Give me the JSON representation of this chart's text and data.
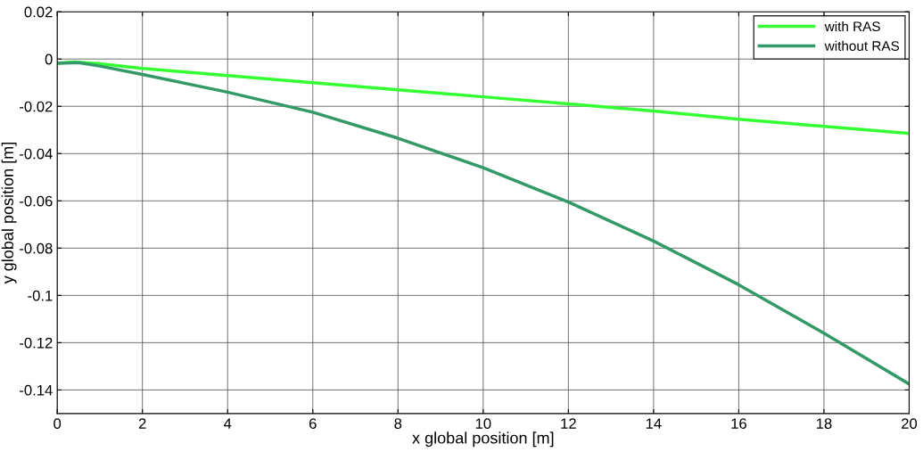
{
  "chart_data": {
    "type": "line",
    "xlabel": "x global position [m]",
    "ylabel": "y global position [m]",
    "xlim": [
      0,
      20
    ],
    "ylim": [
      -0.15,
      0.02
    ],
    "xticks": [
      0,
      2,
      4,
      6,
      8,
      10,
      12,
      14,
      16,
      18,
      20
    ],
    "yticks": [
      {
        "value": -0.14,
        "label": "-0.14"
      },
      {
        "value": -0.12,
        "label": "-0.12"
      },
      {
        "value": -0.1,
        "label": "-0.1"
      },
      {
        "value": -0.08,
        "label": "-0.08"
      },
      {
        "value": -0.06,
        "label": "-0.06"
      },
      {
        "value": -0.04,
        "label": "-0.04"
      },
      {
        "value": -0.02,
        "label": "-0.02"
      },
      {
        "value": 0,
        "label": "0"
      },
      {
        "value": 0.02,
        "label": "0.02"
      }
    ],
    "grid": true,
    "legend": "top right",
    "marker": "none",
    "line_style": "solid",
    "series": [
      {
        "name": "with RAS",
        "color": "#33ff33",
        "x": [
          0,
          0.4,
          1,
          2,
          4,
          6,
          8,
          10,
          12,
          14,
          16,
          18,
          20
        ],
        "values": [
          -0.0018,
          -0.0012,
          -0.002,
          -0.004,
          -0.007,
          -0.01,
          -0.013,
          -0.016,
          -0.019,
          -0.022,
          -0.0255,
          -0.0285,
          -0.0315
        ]
      },
      {
        "name": "without RAS",
        "color": "#339966",
        "x": [
          0,
          0.5,
          1,
          2,
          4,
          6,
          8,
          10,
          12,
          14,
          16,
          18,
          20
        ],
        "values": [
          -0.0018,
          -0.0015,
          -0.003,
          -0.0065,
          -0.014,
          -0.0225,
          -0.0335,
          -0.046,
          -0.0605,
          -0.077,
          -0.0955,
          -0.116,
          -0.1375
        ]
      }
    ]
  }
}
